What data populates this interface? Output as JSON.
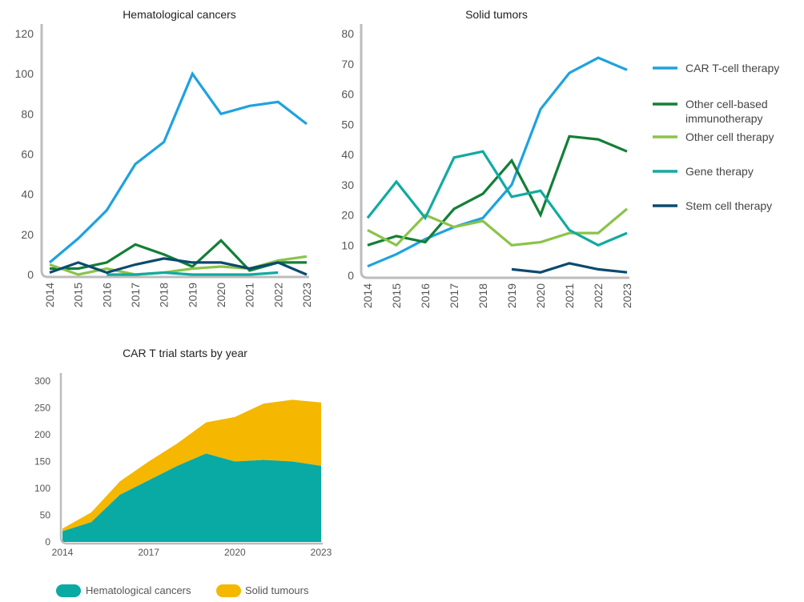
{
  "colors": {
    "car_t": "#1fa2de",
    "other_cell_based": "#137f36",
    "other_cell": "#8bc34a",
    "gene": "#12aaa0",
    "stem": "#0b4a6f",
    "hem_area": "#08aaa3",
    "solid_area": "#f5b700",
    "axis": "#bdbdbd"
  },
  "legend": {
    "items": [
      {
        "key": "car_t",
        "lines": [
          "CAR T-cell therapy"
        ]
      },
      {
        "key": "other_cell_based",
        "lines": [
          "Other cell-based",
          "immunotherapy"
        ]
      },
      {
        "key": "other_cell",
        "lines": [
          "Other cell therapy"
        ]
      },
      {
        "key": "gene",
        "lines": [
          "Gene therapy"
        ]
      },
      {
        "key": "stem",
        "lines": [
          "Stem cell therapy"
        ]
      }
    ]
  },
  "bottom_legend": {
    "items": [
      {
        "key": "hem_area",
        "label": "Hematological cancers"
      },
      {
        "key": "solid_area",
        "label": "Solid tumours"
      }
    ]
  },
  "chart_data": [
    {
      "type": "line",
      "title": "Hematological cancers",
      "xlabel": "",
      "ylabel": "",
      "x": [
        "2014",
        "2015",
        "2016",
        "2017",
        "2018",
        "2019",
        "2020",
        "2021",
        "2022",
        "2023"
      ],
      "ylim": [
        0,
        120
      ],
      "yticks": [
        0,
        20,
        40,
        60,
        80,
        100,
        120
      ],
      "series": [
        {
          "name": "CAR T-cell therapy",
          "key": "car_t",
          "values": [
            6,
            18,
            32,
            55,
            66,
            100,
            80,
            84,
            86,
            75
          ]
        },
        {
          "name": "Other cell-based immunotherapy",
          "key": "other_cell_based",
          "values": [
            3,
            3,
            6,
            15,
            10,
            4,
            17,
            2,
            6,
            6
          ]
        },
        {
          "name": "Other cell therapy",
          "key": "other_cell",
          "values": [
            5,
            0,
            3,
            0,
            1,
            3,
            4,
            3,
            7,
            9
          ]
        },
        {
          "name": "Gene therapy",
          "key": "gene",
          "values": [
            null,
            null,
            0,
            0,
            1,
            0,
            0,
            0,
            1,
            null
          ]
        },
        {
          "name": "Stem cell therapy",
          "key": "stem",
          "values": [
            1,
            6,
            1,
            5,
            8,
            6,
            6,
            3,
            6,
            0
          ]
        }
      ]
    },
    {
      "type": "line",
      "title": "Solid tumors",
      "xlabel": "",
      "ylabel": "",
      "x": [
        "2014",
        "2015",
        "2016",
        "2017",
        "2018",
        "2019",
        "2020",
        "2021",
        "2022",
        "2023"
      ],
      "ylim": [
        0,
        80
      ],
      "yticks": [
        0,
        10,
        20,
        30,
        40,
        50,
        60,
        70,
        80
      ],
      "series": [
        {
          "name": "CAR T-cell therapy",
          "key": "car_t",
          "values": [
            3,
            7,
            12,
            16,
            19,
            30,
            55,
            67,
            72,
            68
          ]
        },
        {
          "name": "Other cell-based immunotherapy",
          "key": "other_cell_based",
          "values": [
            10,
            13,
            11,
            22,
            27,
            38,
            20,
            46,
            45,
            41
          ]
        },
        {
          "name": "Other cell therapy",
          "key": "other_cell",
          "values": [
            15,
            10,
            20,
            16,
            18,
            10,
            11,
            14,
            14,
            22
          ]
        },
        {
          "name": "Gene therapy",
          "key": "gene",
          "values": [
            19,
            31,
            19,
            39,
            41,
            26,
            28,
            15,
            10,
            14
          ]
        },
        {
          "name": "Stem cell therapy",
          "key": "stem",
          "values": [
            null,
            null,
            null,
            null,
            null,
            2,
            1,
            4,
            2,
            1
          ]
        }
      ]
    },
    {
      "type": "area",
      "stacked": true,
      "title": "CAR T trial starts by year",
      "xlabel": "",
      "ylabel": "",
      "x": [
        2014,
        2015,
        2016,
        2017,
        2018,
        2019,
        2020,
        2021,
        2022,
        2023
      ],
      "xticks": [
        2014,
        2017,
        2020,
        2023
      ],
      "ylim": [
        0,
        300
      ],
      "yticks": [
        0,
        50,
        100,
        150,
        200,
        250,
        300
      ],
      "series": [
        {
          "name": "Hematological cancers",
          "key": "hem_area",
          "values": [
            20,
            37,
            88,
            115,
            142,
            165,
            150,
            153,
            150,
            142
          ]
        },
        {
          "name": "Solid tumours",
          "key": "solid_area",
          "values": [
            5,
            18,
            25,
            35,
            42,
            58,
            83,
            105,
            115,
            118
          ]
        }
      ]
    }
  ]
}
